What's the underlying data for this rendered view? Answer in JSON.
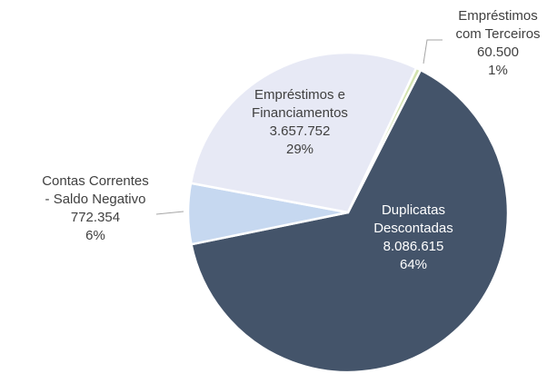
{
  "chart_data": {
    "type": "pie",
    "categories": [
      "Duplicatas\nDescontadas",
      "Contas Correntes\n- Saldo Negativo",
      "Empréstimos e\nFinanciamentos",
      "Empréstimos\ncom Terceiros"
    ],
    "values": [
      8086615,
      772354,
      3657752,
      60500
    ],
    "value_labels": [
      "8.086.615",
      "772.354",
      "3.657.752",
      "60.500"
    ],
    "percent_labels": [
      "64%",
      "6%",
      "29%",
      "1%"
    ],
    "colors": [
      "#44546a",
      "#c6d8f0",
      "#e7e9f5",
      "#d3e3b0"
    ]
  }
}
